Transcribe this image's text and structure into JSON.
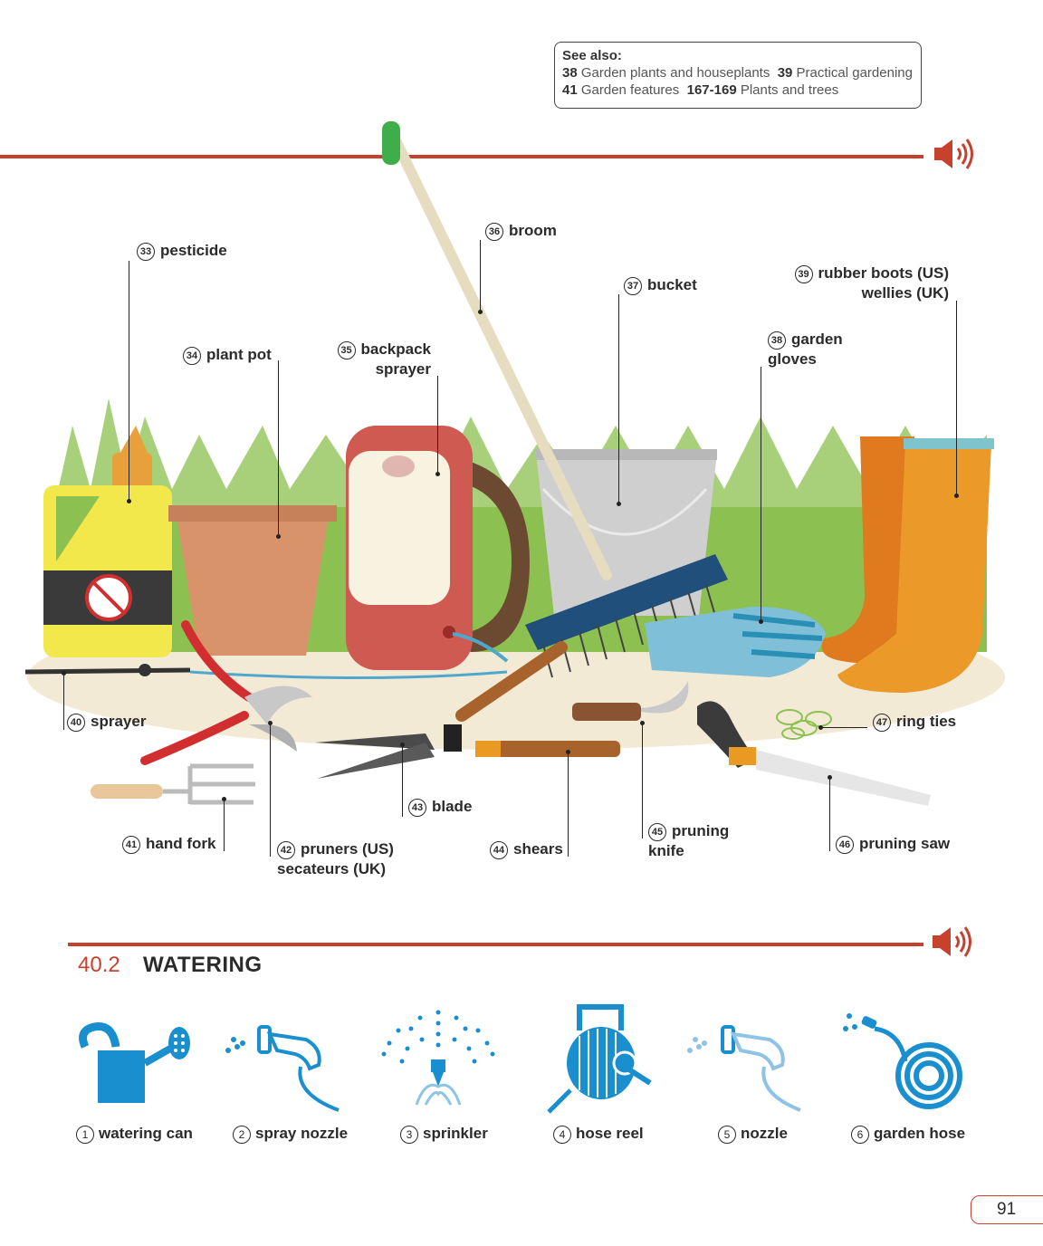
{
  "see_also": {
    "title": "See also:",
    "line1": [
      {
        "num": "38",
        "text": "Garden plants and houseplants"
      },
      {
        "num": "39",
        "text": "Practical gardening"
      }
    ],
    "line2": [
      {
        "num": "41",
        "text": "Garden features"
      },
      {
        "num": "167-169",
        "text": "Plants and trees"
      }
    ]
  },
  "labels": [
    {
      "num": "33",
      "text": "pesticide"
    },
    {
      "num": "34",
      "text": "plant pot"
    },
    {
      "num": "35",
      "text": "backpack",
      "text2": "sprayer"
    },
    {
      "num": "36",
      "text": "broom"
    },
    {
      "num": "37",
      "text": "bucket"
    },
    {
      "num": "38",
      "text": "garden",
      "text2": "gloves"
    },
    {
      "num": "39",
      "text": "rubber boots (US)",
      "text2": "wellies (UK)"
    },
    {
      "num": "40",
      "text": "sprayer"
    },
    {
      "num": "41",
      "text": "hand fork"
    },
    {
      "num": "42",
      "text": "pruners (US)",
      "text2": "secateurs (UK)"
    },
    {
      "num": "43",
      "text": "blade"
    },
    {
      "num": "44",
      "text": "shears"
    },
    {
      "num": "45",
      "text": "pruning",
      "text2": "knife"
    },
    {
      "num": "46",
      "text": "pruning saw"
    },
    {
      "num": "47",
      "text": "ring ties"
    }
  ],
  "section": {
    "number": "40.2",
    "title": "WATERING"
  },
  "watering": [
    {
      "num": "1",
      "text": "watering can"
    },
    {
      "num": "2",
      "text": "spray nozzle"
    },
    {
      "num": "3",
      "text": "sprinkler"
    },
    {
      "num": "4",
      "text": "hose reel"
    },
    {
      "num": "5",
      "text": "nozzle"
    },
    {
      "num": "6",
      "text": "garden hose"
    }
  ],
  "page_number": "91",
  "colors": {
    "accent": "#c8412c",
    "icon_blue": "#1a8fd0",
    "icon_light": "#8fc3e6"
  },
  "icons": [
    "speaker-icon",
    "watering-can-icon",
    "spray-nozzle-icon",
    "sprinkler-icon",
    "hose-reel-icon",
    "nozzle-icon",
    "garden-hose-icon"
  ]
}
